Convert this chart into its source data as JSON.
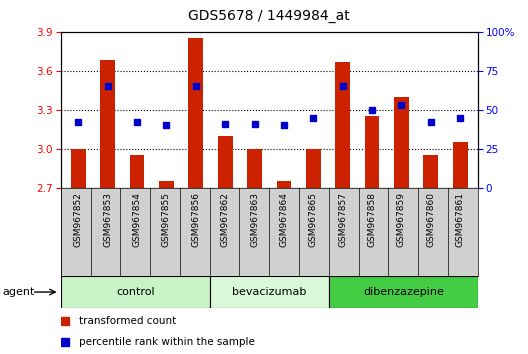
{
  "title": "GDS5678 / 1449984_at",
  "samples": [
    "GSM967852",
    "GSM967853",
    "GSM967854",
    "GSM967855",
    "GSM967856",
    "GSM967862",
    "GSM967863",
    "GSM967864",
    "GSM967865",
    "GSM967857",
    "GSM967858",
    "GSM967859",
    "GSM967860",
    "GSM967861"
  ],
  "transformed_count": [
    3.0,
    3.68,
    2.95,
    2.75,
    3.85,
    3.1,
    3.0,
    2.75,
    3.0,
    3.67,
    3.25,
    3.4,
    2.95,
    3.05
  ],
  "percentile_rank": [
    42,
    65,
    42,
    40,
    65,
    41,
    41,
    40,
    45,
    65,
    50,
    53,
    42,
    45
  ],
  "groups": [
    {
      "name": "control",
      "start": 0,
      "end": 5,
      "color": "#c8f4c8"
    },
    {
      "name": "bevacizumab",
      "start": 5,
      "end": 9,
      "color": "#d8f8d8"
    },
    {
      "name": "dibenzazepine",
      "start": 9,
      "end": 14,
      "color": "#44cc44"
    }
  ],
  "ylim_left": [
    2.7,
    3.9
  ],
  "ylim_right": [
    0,
    100
  ],
  "yticks_left": [
    2.7,
    3.0,
    3.3,
    3.6,
    3.9
  ],
  "yticks_right": [
    0,
    25,
    50,
    75,
    100
  ],
  "bar_color": "#cc2200",
  "dot_color": "#0000cc",
  "bar_width": 0.5,
  "legend_items": [
    {
      "label": "transformed count",
      "color": "#cc2200"
    },
    {
      "label": "percentile rank within the sample",
      "color": "#0000cc"
    }
  ],
  "agent_label": "agent",
  "sample_bg_color": "#d0d0d0",
  "grid_lines": [
    3.0,
    3.3,
    3.6
  ]
}
